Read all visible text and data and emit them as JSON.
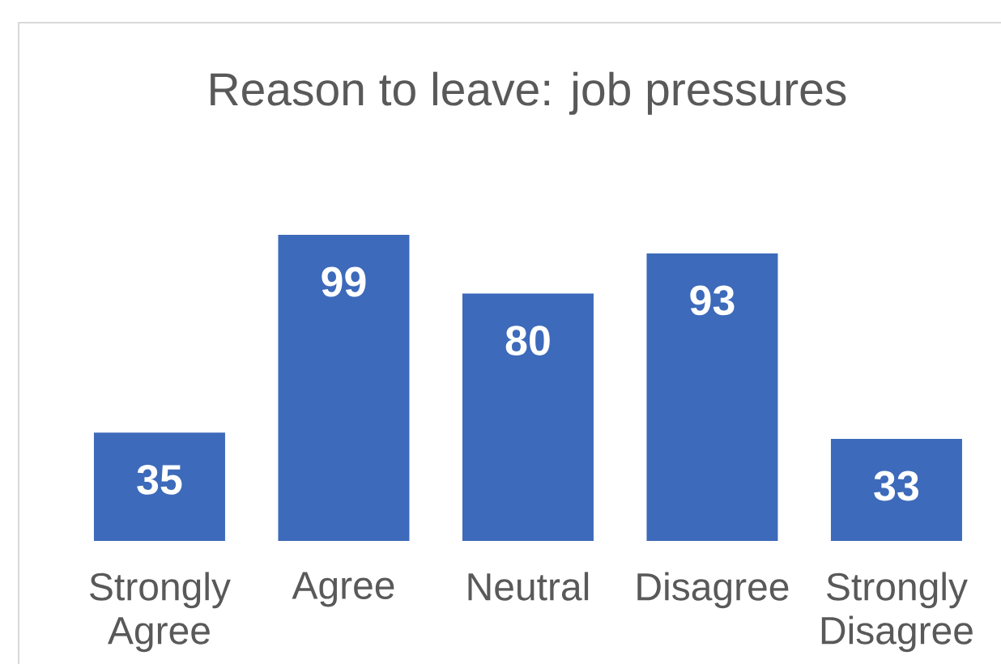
{
  "chart_data": {
    "type": "bar",
    "title": "Reason to leave: job pressures",
    "categories": [
      "Strongly Agree",
      "Agree",
      "Neutral",
      "Disagree",
      "Strongly Disagree"
    ],
    "values": [
      35,
      99,
      80,
      93,
      33
    ],
    "color": "#3d6aba",
    "data_labels": true
  }
}
